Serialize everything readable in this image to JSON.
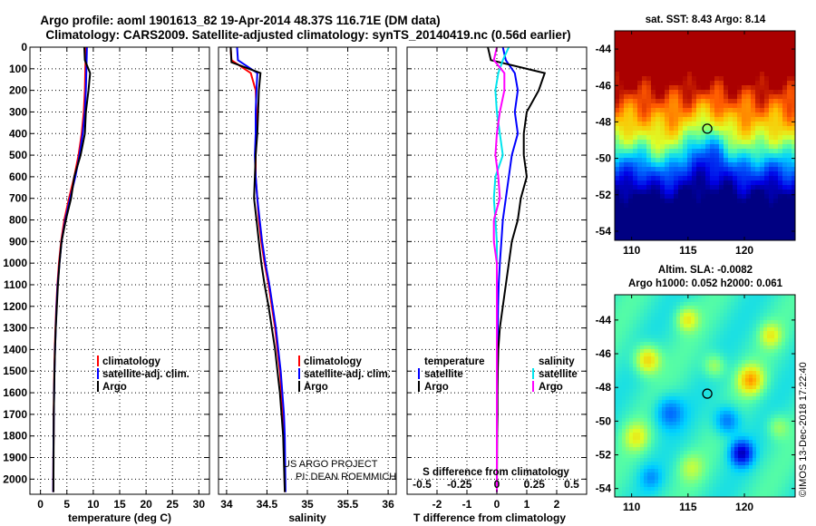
{
  "title_line1": "Argo profile: aoml 1901613_82 19-Apr-2014 48.37S 116.71E (DM data)",
  "title_line2": "Climatology: CARS2009. Satellite-adjusted climatology: synTS_20140419.nc (0.56d earlier)",
  "credit_project": "US ARGO PROJECT",
  "credit_pi": "PI: DEAN ROEMMICH",
  "imos_stamp": "©IMOS 13-Dec-2018 17:22:40",
  "colors": {
    "climatology": "#ff0000",
    "satellite": "#0000ff",
    "argo": "#000000",
    "sat_salinity": "#00e5ee",
    "argo_salinity": "#ff00ff"
  },
  "chart_data": [
    {
      "id": "temperature",
      "type": "line",
      "xlabel": "temperature (deg C)",
      "ylabel": "",
      "xlim": [
        -2,
        32
      ],
      "ylim": [
        2070,
        0
      ],
      "xticks": [
        0,
        5,
        10,
        15,
        20,
        25,
        30
      ],
      "xtick_labels": [
        "0",
        "5",
        "10",
        "15",
        "20",
        "25",
        "30"
      ],
      "yticks": [
        0,
        100,
        200,
        300,
        400,
        500,
        600,
        700,
        800,
        900,
        1000,
        1100,
        1200,
        1300,
        1400,
        1500,
        1600,
        1700,
        1800,
        1900,
        2000
      ],
      "ytick_labels": [
        "0",
        "100",
        "200",
        "300",
        "400",
        "500",
        "600",
        "700",
        "800",
        "900",
        "1000",
        "1100",
        "1200",
        "1300",
        "1400",
        "1500",
        "1600",
        "1700",
        "1800",
        "1900",
        "2000"
      ],
      "grid": true,
      "legend": {
        "position": "lower-right",
        "entries": [
          "climatology",
          "satellite-adj. clim.",
          "Argo"
        ]
      },
      "series": [
        {
          "name": "climatology",
          "color": "#ff0000",
          "x": [
            8.6,
            8.5,
            8.4,
            8.2,
            7.8,
            7.2,
            6.4,
            5.4,
            4.5,
            3.9,
            3.5,
            3.2,
            3.0,
            2.85,
            2.7,
            2.62,
            2.55,
            2.5,
            2.48,
            2.45,
            2.42
          ],
          "y": [
            0,
            100,
            200,
            300,
            400,
            500,
            600,
            700,
            800,
            900,
            1000,
            1100,
            1200,
            1300,
            1400,
            1500,
            1600,
            1700,
            1800,
            1900,
            2060
          ]
        },
        {
          "name": "satellite-adj. clim.",
          "color": "#0000ff",
          "x": [
            8.8,
            8.7,
            8.6,
            8.4,
            8.0,
            7.4,
            6.6,
            5.6,
            4.7,
            4.0,
            3.6,
            3.25,
            3.05,
            2.9,
            2.75,
            2.65,
            2.58,
            2.52,
            2.48,
            2.45,
            2.42
          ],
          "y": [
            0,
            100,
            200,
            300,
            400,
            500,
            600,
            700,
            800,
            900,
            1000,
            1100,
            1200,
            1300,
            1400,
            1500,
            1600,
            1700,
            1800,
            1900,
            2060
          ]
        },
        {
          "name": "Argo",
          "color": "#000000",
          "x": [
            8.3,
            8.4,
            9.4,
            9.1,
            8.6,
            8.4,
            7.6,
            6.4,
            5.8,
            4.8,
            4.0,
            3.6,
            3.3,
            3.1,
            2.9,
            2.75,
            2.65,
            2.58,
            2.52,
            2.5,
            2.45
          ],
          "y": [
            0,
            60,
            120,
            200,
            300,
            400,
            500,
            600,
            700,
            800,
            900,
            1000,
            1100,
            1200,
            1300,
            1400,
            1500,
            1600,
            1700,
            1800,
            2060
          ]
        }
      ]
    },
    {
      "id": "salinity",
      "type": "line",
      "xlabel": "salinity",
      "ylabel": "",
      "xlim": [
        33.9,
        36.1
      ],
      "ylim": [
        2070,
        0
      ],
      "xticks": [
        34,
        34.5,
        35,
        35.5,
        36
      ],
      "xtick_labels": [
        "34",
        "34.5",
        "35",
        "35.5",
        "36"
      ],
      "grid": true,
      "legend": {
        "position": "lower-right",
        "entries": [
          "climatology",
          "satellite-adj. clim.",
          "Argo"
        ]
      },
      "series": [
        {
          "name": "climatology",
          "color": "#ff0000",
          "x": [
            34.05,
            34.06,
            34.3,
            34.36,
            34.37,
            34.37,
            34.36,
            34.36,
            34.38,
            34.4,
            34.43,
            34.47,
            34.52,
            34.56,
            34.6,
            34.63,
            34.66,
            34.68,
            34.7,
            34.71,
            34.72
          ],
          "y": [
            0,
            60,
            120,
            200,
            300,
            400,
            500,
            600,
            700,
            800,
            900,
            1000,
            1100,
            1200,
            1300,
            1400,
            1500,
            1600,
            1700,
            1800,
            2060
          ]
        },
        {
          "name": "satellite-adj. clim.",
          "color": "#0000ff",
          "x": [
            34.13,
            34.14,
            34.38,
            34.37,
            34.36,
            34.36,
            34.35,
            34.36,
            34.38,
            34.41,
            34.44,
            34.48,
            34.53,
            34.57,
            34.61,
            34.64,
            34.67,
            34.69,
            34.71,
            34.72,
            34.73
          ],
          "y": [
            0,
            60,
            120,
            200,
            300,
            400,
            500,
            600,
            700,
            800,
            900,
            1000,
            1100,
            1200,
            1300,
            1400,
            1500,
            1600,
            1700,
            1800,
            2060
          ]
        },
        {
          "name": "Argo",
          "color": "#000000",
          "x": [
            34.05,
            34.06,
            34.42,
            34.4,
            34.39,
            34.38,
            34.36,
            34.35,
            34.34,
            34.37,
            34.4,
            34.43,
            34.47,
            34.52,
            34.56,
            34.6,
            34.63,
            34.66,
            34.68,
            34.7,
            34.72
          ],
          "y": [
            0,
            70,
            120,
            200,
            300,
            400,
            500,
            600,
            700,
            800,
            900,
            1000,
            1100,
            1200,
            1300,
            1400,
            1500,
            1600,
            1700,
            1800,
            2060
          ]
        }
      ]
    },
    {
      "id": "differences",
      "type": "line",
      "xlabel": "T difference from climatology",
      "top_axis_label": "S difference from climatology",
      "xlim": [
        -3,
        3
      ],
      "ylim": [
        2070,
        0
      ],
      "xticks": [
        -2,
        -1,
        0,
        1,
        2
      ],
      "xtick_labels": [
        "-2",
        "-1",
        "0",
        "1",
        "2"
      ],
      "top_xtick_positions": [
        -2.5,
        -1.25,
        0,
        1.25,
        2.5
      ],
      "top_xtick_labels": [
        "-0.5",
        "-0.25",
        "0",
        "0.25",
        "0.5"
      ],
      "grid": true,
      "legend": {
        "position": "lower-right",
        "left_header": "temperature",
        "right_header": "salinity",
        "left_entries": [
          "satellite",
          "Argo"
        ],
        "right_entries": [
          "satellite",
          "Argo"
        ]
      },
      "series": [
        {
          "name": "temperature satellite",
          "color": "#0000ff",
          "x": [
            0.2,
            0.3,
            0.6,
            0.7,
            0.6,
            0.7,
            0.5,
            0.4,
            0.3,
            0.2,
            0.15,
            0.1,
            0.06,
            0.04,
            0.03,
            0.02,
            0.02,
            0.01,
            0.0,
            0.0,
            0.0
          ],
          "y": [
            0,
            60,
            120,
            200,
            300,
            400,
            500,
            600,
            700,
            800,
            900,
            1000,
            1100,
            1200,
            1300,
            1400,
            1500,
            1600,
            1700,
            1800,
            2060
          ]
        },
        {
          "name": "temperature Argo",
          "color": "#000000",
          "x": [
            -0.3,
            -0.2,
            1.6,
            1.4,
            1.0,
            0.9,
            0.9,
            1.0,
            0.8,
            0.7,
            0.5,
            0.4,
            0.3,
            0.2,
            0.1,
            0.05,
            0.03,
            0.02,
            0.02,
            0.01,
            0.0
          ],
          "y": [
            0,
            60,
            120,
            200,
            300,
            400,
            500,
            600,
            700,
            800,
            900,
            1000,
            1100,
            1200,
            1300,
            1400,
            1500,
            1600,
            1700,
            1800,
            2060
          ]
        },
        {
          "name": "salinity satellite",
          "color": "#00e5ee",
          "x": [
            0.4,
            0.2,
            0.05,
            -0.05,
            0.0,
            0.1,
            0.2,
            -0.05,
            -0.1,
            -0.05,
            0.0,
            0.0,
            0.0,
            0.0,
            0.0,
            0.0,
            0.0,
            0.0,
            0.0,
            0.0,
            0.0
          ],
          "y": [
            0,
            60,
            120,
            200,
            300,
            400,
            500,
            600,
            700,
            800,
            900,
            1000,
            1100,
            1200,
            1300,
            1400,
            1500,
            1600,
            1700,
            1800,
            2060
          ]
        },
        {
          "name": "salinity Argo",
          "color": "#ff00ff",
          "x": [
            0.0,
            -0.1,
            0.25,
            0.25,
            0.1,
            0.0,
            -0.05,
            0.05,
            0.1,
            -0.1,
            -0.1,
            0.0,
            0.0,
            0.0,
            0.0,
            0.0,
            0.0,
            0.0,
            0.0,
            0.0,
            0.0
          ],
          "y": [
            0,
            60,
            120,
            200,
            300,
            400,
            500,
            600,
            700,
            800,
            900,
            1000,
            1100,
            1200,
            1300,
            1400,
            1500,
            1600,
            1700,
            1800,
            2060
          ]
        }
      ]
    },
    {
      "id": "sst_map",
      "type": "heatmap",
      "title": "sat. SST: 8.43 Argo: 8.14",
      "xlim": [
        108.5,
        124.5
      ],
      "ylim": [
        -54.5,
        -43
      ],
      "xticks": [
        110,
        115,
        120
      ],
      "xtick_labels": [
        "110",
        "115",
        "120"
      ],
      "yticks": [
        -44,
        -46,
        -48,
        -50,
        -52,
        -54
      ],
      "ytick_labels": [
        "-44",
        "-46",
        "-48",
        "-50",
        "-52",
        "-54"
      ],
      "marker": {
        "lon": 116.71,
        "lat": -48.37
      }
    },
    {
      "id": "sla_map",
      "type": "heatmap",
      "title_line1": "Altim. SLA: -0.0082",
      "title_line2": "Argo h1000: 0.052 h2000: 0.061",
      "xlim": [
        108.5,
        124.5
      ],
      "ylim": [
        -54.5,
        -42.5
      ],
      "xticks": [
        110,
        115,
        120
      ],
      "xtick_labels": [
        "110",
        "115",
        "120"
      ],
      "yticks": [
        -44,
        -46,
        -48,
        -50,
        -52,
        -54
      ],
      "ytick_labels": [
        "-44",
        "-46",
        "-48",
        "-50",
        "-52",
        "-54"
      ],
      "marker": {
        "lon": 116.71,
        "lat": -48.37
      }
    }
  ]
}
